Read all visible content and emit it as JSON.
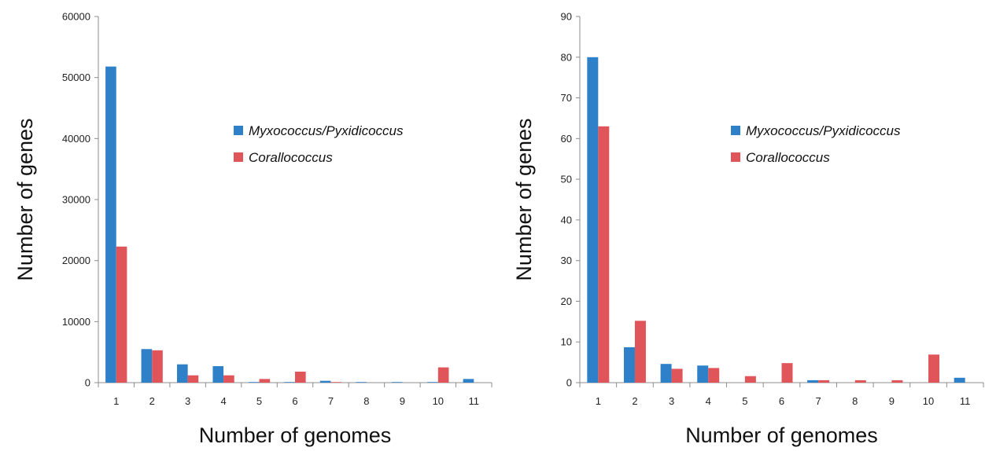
{
  "chart_data": [
    {
      "type": "bar",
      "categories": [
        "1",
        "2",
        "3",
        "4",
        "5",
        "6",
        "7",
        "8",
        "9",
        "10",
        "11"
      ],
      "series": [
        {
          "name": "Myxococcus/Pyxidicoccus",
          "color": "#2e80c8",
          "values": [
            51800,
            5500,
            3000,
            2700,
            100,
            100,
            300,
            100,
            100,
            100,
            600
          ]
        },
        {
          "name": "Corallococcus",
          "color": "#e0555a",
          "values": [
            22300,
            5300,
            1200,
            1200,
            600,
            1800,
            100,
            0,
            0,
            2500,
            0
          ]
        }
      ],
      "xlabel": "Number of genomes",
      "ylabel": "Number of genes",
      "ylim": [
        0,
        60000
      ],
      "yticks": [
        "0",
        "10000",
        "20000",
        "30000",
        "40000",
        "50000",
        "60000"
      ],
      "ytick_values": [
        0,
        10000,
        20000,
        30000,
        40000,
        50000,
        60000
      ],
      "grid": false,
      "legend_position": "top-right"
    },
    {
      "type": "bar",
      "categories": [
        "1",
        "2",
        "3",
        "4",
        "5",
        "6",
        "7",
        "8",
        "9",
        "10",
        "11"
      ],
      "series": [
        {
          "name": "Myxococcus/Pyxidicoccus",
          "color": "#2e80c8",
          "values": [
            80,
            8.7,
            4.6,
            4.2,
            0,
            0,
            0.6,
            0,
            0,
            0,
            1.2
          ]
        },
        {
          "name": "Corallococcus",
          "color": "#e0555a",
          "values": [
            63,
            15.2,
            3.4,
            3.6,
            1.6,
            4.8,
            0.6,
            0.6,
            0.6,
            6.9,
            0
          ]
        }
      ],
      "xlabel": "Number of genomes",
      "ylabel": "Number of genes",
      "ylim": [
        0,
        90
      ],
      "yticks": [
        "0",
        "10",
        "20",
        "30",
        "40",
        "50",
        "60",
        "70",
        "80",
        "90"
      ],
      "ytick_values": [
        0,
        10,
        20,
        30,
        40,
        50,
        60,
        70,
        80,
        90
      ],
      "grid": false,
      "legend_position": "top-right"
    }
  ]
}
